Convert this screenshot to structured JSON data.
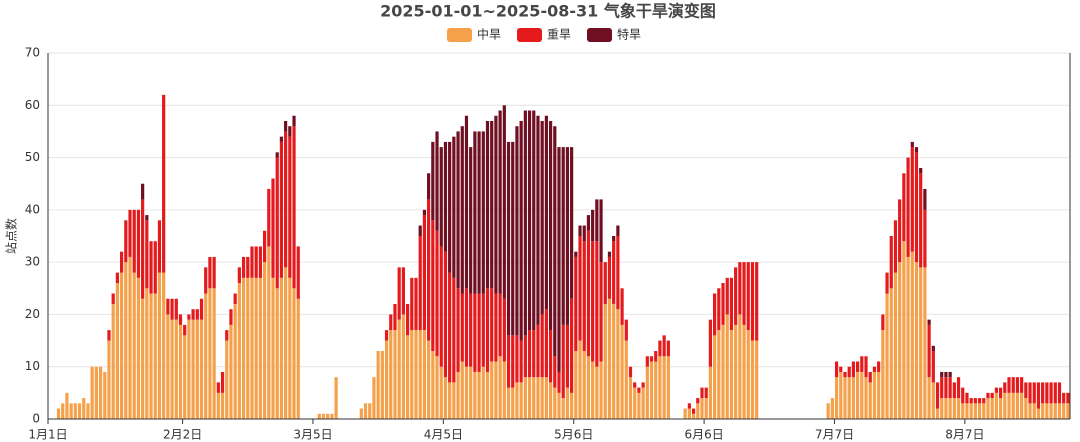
{
  "chart_data": {
    "type": "bar",
    "stacked": true,
    "title": "2025-01-01~2025-08-31 气象干旱演变图",
    "y_label": "站点数",
    "ylim": [
      0,
      70
    ],
    "yticks": [
      0,
      10,
      20,
      30,
      40,
      50,
      60,
      70
    ],
    "grid": true,
    "legend": "top",
    "categories": [
      "1月1日",
      null,
      null,
      null,
      null,
      null,
      null,
      null,
      null,
      null,
      null,
      null,
      null,
      null,
      null,
      null,
      null,
      null,
      null,
      null,
      null,
      null,
      null,
      null,
      null,
      null,
      null,
      null,
      null,
      null,
      null,
      null,
      "2月2日",
      null,
      null,
      null,
      null,
      null,
      null,
      null,
      null,
      null,
      null,
      null,
      null,
      null,
      null,
      null,
      null,
      null,
      null,
      null,
      null,
      null,
      null,
      null,
      null,
      null,
      null,
      null,
      null,
      null,
      null,
      "3月5日",
      null,
      null,
      null,
      null,
      null,
      null,
      null,
      null,
      null,
      null,
      null,
      null,
      null,
      null,
      null,
      null,
      null,
      null,
      null,
      null,
      null,
      null,
      null,
      null,
      null,
      null,
      null,
      null,
      null,
      null,
      "4月5日",
      null,
      null,
      null,
      null,
      null,
      null,
      null,
      null,
      null,
      null,
      null,
      null,
      null,
      null,
      null,
      null,
      null,
      null,
      null,
      null,
      null,
      null,
      null,
      null,
      null,
      null,
      null,
      null,
      null,
      null,
      "5月6日",
      null,
      null,
      null,
      null,
      null,
      null,
      null,
      null,
      null,
      null,
      null,
      null,
      null,
      null,
      null,
      null,
      null,
      null,
      null,
      null,
      null,
      null,
      null,
      null,
      null,
      null,
      null,
      null,
      null,
      null,
      "6月6日",
      null,
      null,
      null,
      null,
      null,
      null,
      null,
      null,
      null,
      null,
      null,
      null,
      null,
      null,
      null,
      null,
      null,
      null,
      null,
      null,
      null,
      null,
      null,
      null,
      null,
      null,
      null,
      null,
      null,
      null,
      "7月7日",
      null,
      null,
      null,
      null,
      null,
      null,
      null,
      null,
      null,
      null,
      null,
      null,
      null,
      null,
      null,
      null,
      null,
      null,
      null,
      null,
      null,
      null,
      null,
      null,
      null,
      null,
      null,
      null,
      null,
      null,
      "8月7日",
      null,
      null,
      null,
      null,
      null,
      null,
      null,
      null,
      null,
      null,
      null,
      null,
      null,
      null,
      null,
      null,
      null,
      null,
      null,
      null,
      null,
      null,
      null,
      null
    ],
    "series": [
      {
        "name": "中旱",
        "color": "#f5a04a",
        "values": [
          0,
          0,
          2,
          3,
          5,
          3,
          3,
          3,
          4,
          3,
          10,
          10,
          10,
          9,
          15,
          22,
          26,
          28,
          30,
          31,
          28,
          27,
          23,
          25,
          24,
          24,
          28,
          28,
          20,
          19,
          19,
          18,
          16,
          19,
          19,
          19,
          19,
          24,
          25,
          25,
          5,
          5,
          15,
          18,
          22,
          26,
          27,
          27,
          27,
          27,
          27,
          30,
          33,
          27,
          25,
          27,
          29,
          27,
          25,
          23,
          0,
          0,
          0,
          0,
          1,
          1,
          1,
          1,
          8,
          0,
          0,
          0,
          0,
          0,
          2,
          3,
          3,
          8,
          13,
          13,
          15,
          17,
          17,
          19,
          20,
          16,
          17,
          17,
          17,
          17,
          15,
          13,
          12,
          10,
          8,
          7,
          7,
          9,
          11,
          10,
          10,
          9,
          9,
          10,
          9,
          11,
          11,
          12,
          11,
          6,
          6,
          7,
          7,
          8,
          8,
          8,
          8,
          8,
          8,
          7,
          6,
          5,
          4,
          6,
          5,
          13,
          15,
          13,
          12,
          11,
          10,
          11,
          22,
          23,
          22,
          21,
          18,
          15,
          8,
          6,
          5,
          6,
          10,
          11,
          11,
          12,
          12,
          12,
          0,
          0,
          0,
          2,
          2,
          1,
          3,
          4,
          4,
          10,
          16,
          17,
          18,
          20,
          17,
          18,
          20,
          18,
          17,
          15,
          15,
          0,
          0,
          0,
          0,
          0,
          0,
          0,
          0,
          0,
          0,
          0,
          0,
          0,
          0,
          0,
          0,
          3,
          4,
          8,
          9,
          8,
          8,
          8,
          9,
          9,
          8,
          7,
          9,
          9,
          17,
          24,
          25,
          28,
          30,
          34,
          31,
          32,
          30,
          29,
          29,
          8,
          7,
          2,
          4,
          4,
          4,
          4,
          4,
          3,
          3,
          3,
          3,
          3,
          3,
          4,
          4,
          5,
          4,
          5,
          5,
          5,
          5,
          5,
          4,
          3,
          3,
          2,
          3,
          3,
          3,
          3,
          3,
          3,
          3
        ]
      },
      {
        "name": "重旱",
        "color": "#e41a1c",
        "values": [
          0,
          0,
          0,
          0,
          0,
          0,
          0,
          0,
          0,
          0,
          0,
          0,
          0,
          0,
          2,
          2,
          2,
          4,
          8,
          9,
          12,
          13,
          19,
          13,
          10,
          10,
          10,
          34,
          3,
          4,
          4,
          2,
          2,
          1,
          2,
          2,
          4,
          5,
          6,
          6,
          2,
          4,
          2,
          3,
          2,
          3,
          4,
          4,
          6,
          6,
          6,
          6,
          11,
          19,
          25,
          26,
          26,
          27,
          31,
          10,
          0,
          0,
          0,
          0,
          0,
          0,
          0,
          0,
          0,
          0,
          0,
          0,
          0,
          0,
          0,
          0,
          0,
          0,
          0,
          0,
          2,
          3,
          5,
          10,
          9,
          6,
          10,
          10,
          18,
          22,
          27,
          25,
          24,
          23,
          24,
          21,
          20,
          16,
          13,
          15,
          14,
          15,
          15,
          14,
          16,
          14,
          13,
          12,
          12,
          10,
          10,
          9,
          8,
          8,
          9,
          9,
          10,
          12,
          13,
          10,
          6,
          4,
          14,
          12,
          18,
          18,
          20,
          21,
          24,
          23,
          24,
          19,
          8,
          8,
          12,
          14,
          7,
          4,
          2,
          1,
          1,
          1,
          2,
          1,
          2,
          3,
          4,
          3,
          0,
          0,
          0,
          0,
          1,
          1,
          1,
          2,
          2,
          9,
          8,
          8,
          8,
          7,
          10,
          11,
          10,
          12,
          13,
          15,
          15,
          0,
          0,
          0,
          0,
          0,
          0,
          0,
          0,
          0,
          0,
          0,
          0,
          0,
          0,
          0,
          0,
          0,
          0,
          3,
          1,
          1,
          2,
          3,
          2,
          3,
          4,
          2,
          1,
          2,
          3,
          4,
          10,
          10,
          12,
          13,
          19,
          20,
          21,
          18,
          11,
          10,
          6,
          5,
          4,
          4,
          4,
          3,
          4,
          3,
          2,
          1,
          1,
          1,
          1,
          1,
          1,
          1,
          2,
          2,
          3,
          3,
          3,
          3,
          3,
          4,
          4,
          5,
          4,
          4,
          4,
          4,
          4,
          2,
          2
        ]
      },
      {
        "name": "特旱",
        "color": "#700f22",
        "values": [
          0,
          0,
          0,
          0,
          0,
          0,
          0,
          0,
          0,
          0,
          0,
          0,
          0,
          0,
          0,
          0,
          0,
          0,
          0,
          0,
          0,
          0,
          3,
          1,
          0,
          0,
          0,
          0,
          0,
          0,
          0,
          0,
          0,
          0,
          0,
          0,
          0,
          0,
          0,
          0,
          0,
          0,
          0,
          0,
          0,
          0,
          0,
          0,
          0,
          0,
          0,
          0,
          0,
          0,
          1,
          1,
          2,
          2,
          2,
          0,
          0,
          0,
          0,
          0,
          0,
          0,
          0,
          0,
          0,
          0,
          0,
          0,
          0,
          0,
          0,
          0,
          0,
          0,
          0,
          0,
          0,
          0,
          0,
          0,
          0,
          0,
          0,
          0,
          2,
          1,
          5,
          15,
          19,
          19,
          21,
          25,
          27,
          30,
          32,
          33,
          28,
          31,
          31,
          31,
          32,
          32,
          34,
          35,
          37,
          37,
          37,
          40,
          42,
          43,
          42,
          42,
          40,
          37,
          37,
          40,
          44,
          43,
          34,
          34,
          29,
          1,
          2,
          3,
          3,
          6,
          8,
          12,
          0,
          1,
          1,
          2,
          0,
          0,
          0,
          0,
          0,
          0,
          0,
          0,
          0,
          0,
          0,
          0,
          0,
          0,
          0,
          0,
          0,
          0,
          0,
          0,
          0,
          0,
          0,
          0,
          0,
          0,
          0,
          0,
          0,
          0,
          0,
          0,
          0,
          0,
          0,
          0,
          0,
          0,
          0,
          0,
          0,
          0,
          0,
          0,
          0,
          0,
          0,
          0,
          0,
          0,
          0,
          0,
          0,
          0,
          0,
          0,
          0,
          0,
          0,
          0,
          0,
          0,
          0,
          0,
          0,
          0,
          0,
          0,
          0,
          1,
          1,
          1,
          4,
          1,
          1,
          0,
          1,
          1,
          1,
          0,
          0,
          0,
          0,
          0,
          0,
          0,
          0,
          0,
          0,
          0,
          0,
          0,
          0,
          0,
          0,
          0,
          0,
          0,
          0,
          0,
          0,
          0,
          0,
          0,
          0,
          0,
          0
        ]
      }
    ]
  }
}
